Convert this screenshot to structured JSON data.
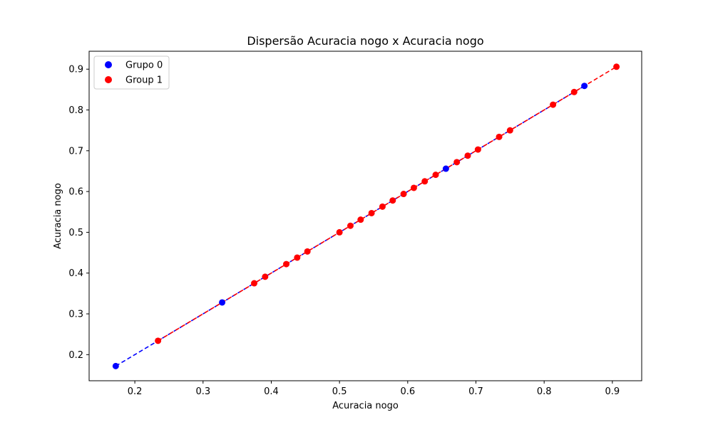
{
  "chart_data": {
    "type": "scatter",
    "title": "Dispersão Acuracia nogo x Acuracia nogo",
    "xlabel": "Acuracia nogo",
    "ylabel": "Acuracia nogo",
    "xlim": [
      0.133,
      0.943
    ],
    "ylim": [
      0.136,
      0.944
    ],
    "xticks": [
      0.2,
      0.3,
      0.4,
      0.5,
      0.6,
      0.7,
      0.8,
      0.9
    ],
    "xtick_labels": [
      "0.2",
      "0.3",
      "0.4",
      "0.5",
      "0.6",
      "0.7",
      "0.8",
      "0.9"
    ],
    "yticks": [
      0.2,
      0.3,
      0.4,
      0.5,
      0.6,
      0.7,
      0.8,
      0.9
    ],
    "ytick_labels": [
      "0.2",
      "0.3",
      "0.4",
      "0.5",
      "0.6",
      "0.7",
      "0.8",
      "0.9"
    ],
    "grid": false,
    "legend_position": "top-left",
    "series": [
      {
        "name": "Grupo 0",
        "color": "#0000ff",
        "trendline_style": "dashed",
        "x": [
          0.172,
          0.328,
          0.656,
          0.859
        ],
        "y": [
          0.172,
          0.328,
          0.656,
          0.859
        ]
      },
      {
        "name": "Group 1",
        "color": "#ff0000",
        "trendline_style": "dashed",
        "x": [
          0.234,
          0.375,
          0.391,
          0.422,
          0.438,
          0.453,
          0.5,
          0.516,
          0.531,
          0.547,
          0.563,
          0.578,
          0.594,
          0.609,
          0.625,
          0.641,
          0.672,
          0.688,
          0.703,
          0.734,
          0.75,
          0.813,
          0.844,
          0.906
        ],
        "y": [
          0.234,
          0.375,
          0.391,
          0.422,
          0.438,
          0.453,
          0.5,
          0.516,
          0.531,
          0.547,
          0.563,
          0.578,
          0.594,
          0.609,
          0.625,
          0.641,
          0.672,
          0.688,
          0.703,
          0.734,
          0.75,
          0.813,
          0.844,
          0.906
        ]
      }
    ]
  }
}
